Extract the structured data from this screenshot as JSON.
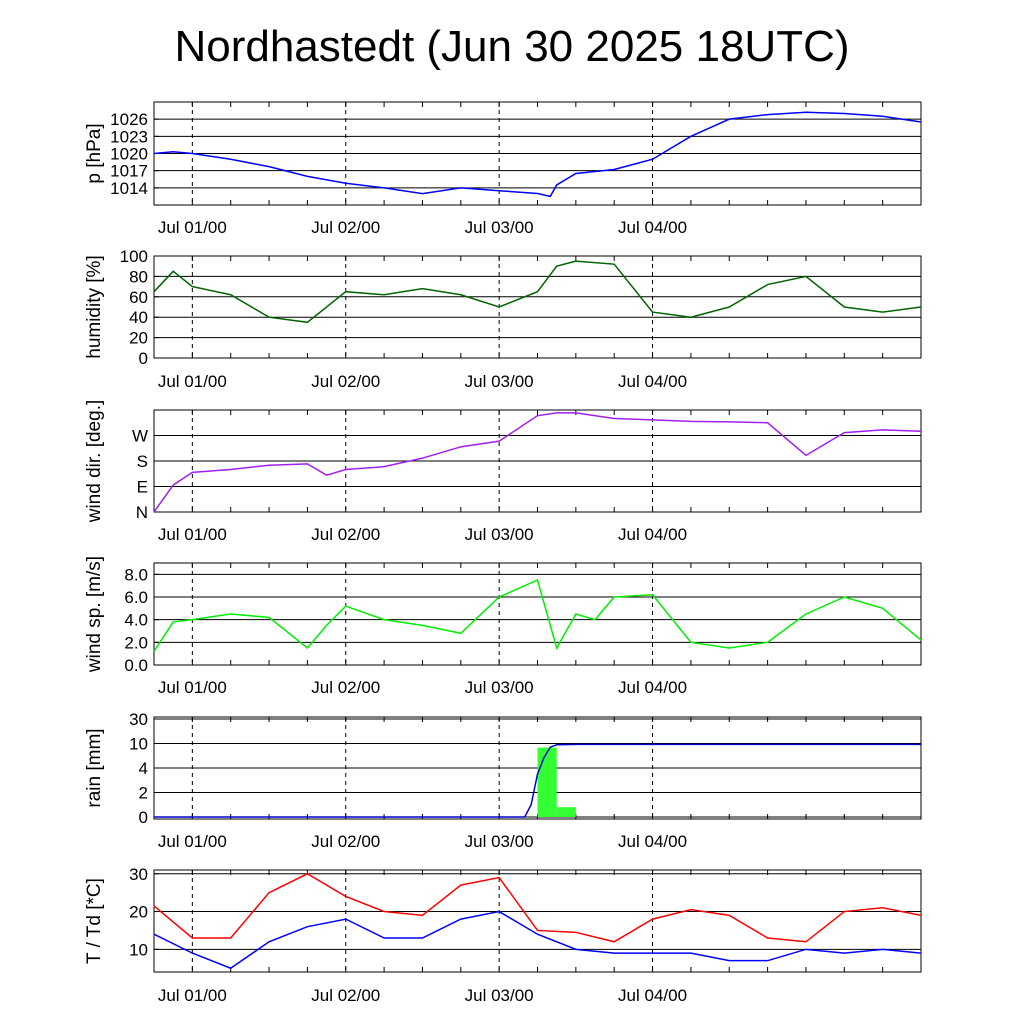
{
  "title": "Nordhastedt (Jun 30 2025 18UTC)",
  "x_ticks": [
    "Jul 01/00",
    "Jul 02/00",
    "Jul 03/00",
    "Jul 04/00"
  ],
  "colors": {
    "pressure": "#0000ff",
    "humidity": "#006400",
    "wind_dir": "#a020f0",
    "wind_speed": "#00ee00",
    "rain_bars": "#33ff33",
    "rain_cum": "#0000cc",
    "temperature": "#ff0000",
    "dewpoint": "#0000ff"
  },
  "chart_data": [
    {
      "type": "line",
      "ylabel": "p [hPa]",
      "ylim": [
        1011,
        1029
      ],
      "y_ticks": [
        "1014",
        "1017",
        "1020",
        "1023",
        "1026"
      ],
      "x": [
        -6,
        -3,
        0,
        6,
        12,
        18,
        24,
        30,
        36,
        42,
        48,
        54,
        56,
        57,
        60,
        66,
        72,
        78,
        84,
        90,
        96,
        102,
        108,
        114
      ],
      "series": [
        {
          "name": "p",
          "values": [
            1020,
            1020.3,
            1020,
            1019,
            1017.7,
            1016,
            1014.8,
            1014,
            1013,
            1014,
            1013.5,
            1013,
            1012.5,
            1014.5,
            1016.5,
            1017.2,
            1019,
            1023,
            1026,
            1026.8,
            1027.2,
            1027,
            1026.5,
            1025.5
          ]
        }
      ]
    },
    {
      "type": "line",
      "ylabel": "humidity [%]",
      "ylim": [
        0,
        100
      ],
      "y_ticks": [
        "0",
        "20",
        "40",
        "60",
        "80",
        "100"
      ],
      "x": [
        -6,
        -3,
        0,
        6,
        12,
        18,
        24,
        30,
        36,
        42,
        48,
        54,
        57,
        60,
        66,
        72,
        78,
        84,
        90,
        96,
        102,
        108,
        114
      ],
      "series": [
        {
          "name": "humidity",
          "values": [
            65,
            85,
            70,
            62,
            40,
            35,
            65,
            62,
            68,
            62,
            50,
            65,
            90,
            95,
            92,
            45,
            40,
            50,
            72,
            80,
            50,
            45,
            50
          ]
        }
      ]
    },
    {
      "type": "line",
      "ylabel": "wind dir. [deg.]",
      "ylim": [
        0,
        360
      ],
      "y_ticks": [
        "N",
        "E",
        "S",
        "W"
      ],
      "x": [
        -6,
        -3,
        0,
        6,
        12,
        18,
        21,
        24,
        30,
        36,
        42,
        48,
        54,
        57,
        60,
        66,
        72,
        78,
        84,
        90,
        96,
        102,
        108,
        114
      ],
      "series": [
        {
          "name": "wind dir.",
          "values": [
            0,
            95,
            140,
            150,
            165,
            170,
            130,
            150,
            160,
            190,
            230,
            250,
            340,
            350,
            350,
            330,
            325,
            320,
            318,
            315,
            200,
            280,
            290,
            285
          ]
        }
      ]
    },
    {
      "type": "line",
      "ylabel": "wind sp. [m/s]",
      "ylim": [
        0,
        9
      ],
      "y_ticks": [
        "0.0",
        "2.0",
        "4.0",
        "6.0",
        "8.0"
      ],
      "x": [
        -6,
        -3,
        0,
        6,
        12,
        18,
        21,
        24,
        30,
        36,
        42,
        48,
        54,
        57,
        60,
        63,
        66,
        72,
        78,
        84,
        90,
        96,
        102,
        108,
        114
      ],
      "series": [
        {
          "name": "wind sp.",
          "values": [
            1.2,
            3.8,
            4.0,
            4.5,
            4.2,
            1.5,
            3.5,
            5.2,
            4.0,
            3.5,
            2.8,
            6.0,
            7.5,
            1.5,
            4.5,
            4.0,
            6.0,
            6.2,
            2.0,
            1.5,
            2.0,
            4.5,
            6.0,
            5.0,
            2.2
          ]
        }
      ]
    },
    {
      "type": "bar",
      "ylabel": "rain [mm]",
      "y_ticks": [
        "0",
        "2",
        "4",
        "10",
        "30"
      ],
      "y_ticks_values": [
        0,
        2,
        4,
        10,
        30
      ],
      "bars": [
        {
          "start": 54,
          "end": 57,
          "value": 9
        },
        {
          "start": 57,
          "end": 60,
          "value": 0.8
        }
      ],
      "cumulative": {
        "x": [
          -6,
          52,
          53,
          54,
          55,
          56,
          57,
          60,
          114
        ],
        "values": [
          0,
          0,
          1,
          3.5,
          6.5,
          9.1,
          9.7,
          9.8,
          9.8
        ]
      }
    },
    {
      "type": "line",
      "ylabel": "T / Td [*C]",
      "ylim": [
        4,
        31
      ],
      "y_ticks": [
        "10",
        "20",
        "30"
      ],
      "x": [
        -6,
        0,
        6,
        12,
        18,
        24,
        30,
        36,
        42,
        48,
        54,
        60,
        66,
        72,
        78,
        84,
        90,
        96,
        102,
        108,
        114
      ],
      "series": [
        {
          "name": "T",
          "values": [
            21.5,
            13,
            13,
            25,
            30,
            24,
            20,
            19,
            27,
            29,
            15,
            14.5,
            12,
            18,
            20.5,
            19,
            13,
            12,
            20,
            21,
            19
          ]
        },
        {
          "name": "Td",
          "values": [
            14,
            9,
            5,
            12,
            16,
            18,
            13,
            13,
            18,
            20,
            14,
            10,
            9,
            9,
            9,
            7,
            7,
            10,
            9,
            10,
            9
          ]
        }
      ]
    }
  ]
}
